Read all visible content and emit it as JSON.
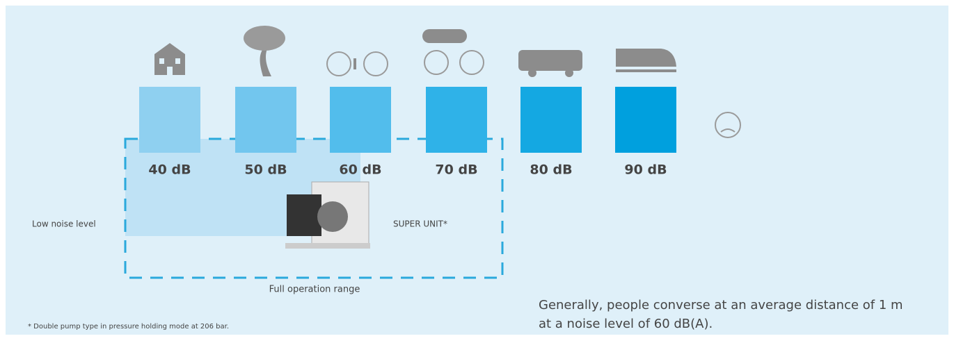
{
  "levels": [
    "40 dB",
    "50 dB",
    "60 dB",
    "70 dB",
    "80 dB",
    "90 dB"
  ],
  "low_noise_label": "Low noise level",
  "product_label": "SUPER UNIT*",
  "range_label": "Full operation range",
  "footnote": "* Double pump type in pressure holding mode at 206 bar.",
  "note": [
    "Generally, people converse at an average distance of 1 m",
    "at a noise level of 60 dB(A)."
  ]
}
